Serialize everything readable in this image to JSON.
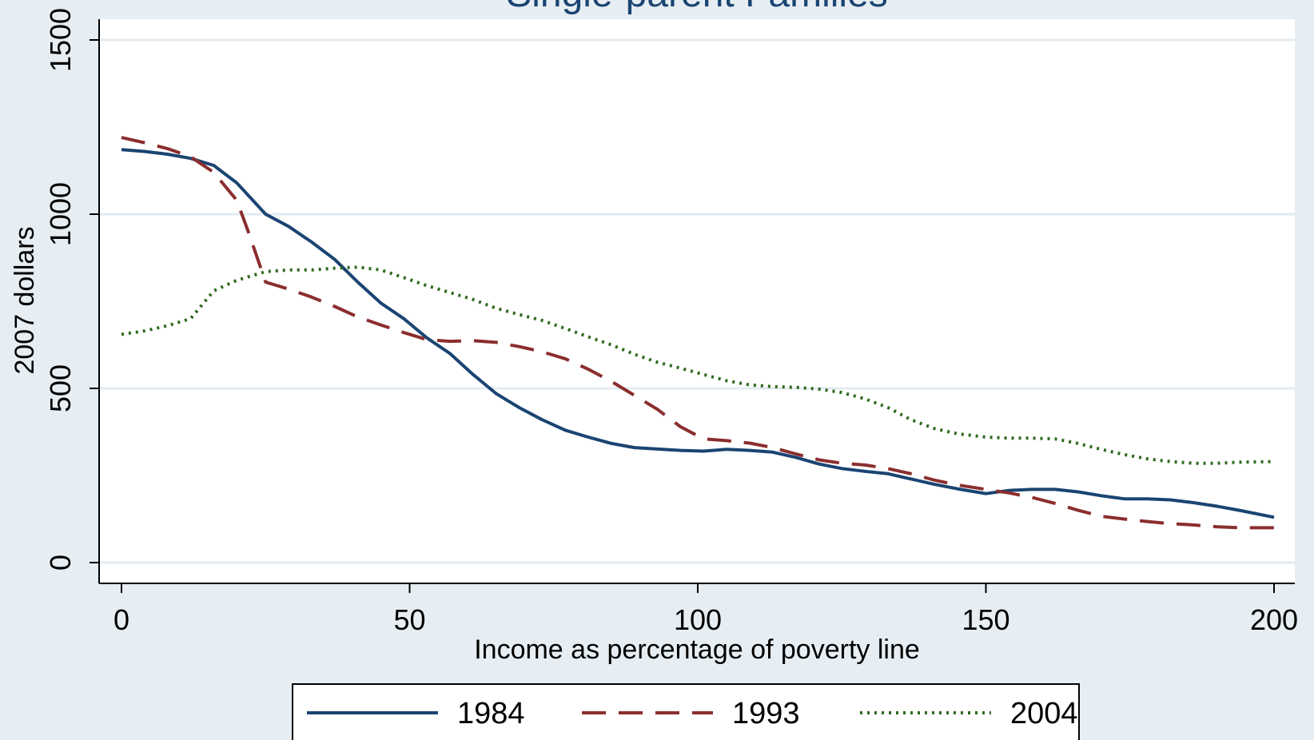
{
  "chart_data": {
    "type": "line",
    "title": "Single-parent Families",
    "xlabel": "Income as percentage of poverty line",
    "ylabel": "2007 dollars",
    "xlim": [
      0,
      200
    ],
    "ylim": [
      0,
      1500
    ],
    "xticks": [
      "0",
      "50",
      "100",
      "150",
      "200"
    ],
    "yticks": [
      "0",
      "500",
      "1000",
      "1500"
    ],
    "grid": true,
    "legend_position": "bottom",
    "series": [
      {
        "name": "1984",
        "color": "#1a4472",
        "style": "solid",
        "x": [
          0,
          4,
          8,
          12,
          16,
          20,
          25,
          29,
          33,
          37,
          41,
          45,
          49,
          53,
          57,
          61,
          65,
          69,
          73,
          77,
          81,
          85,
          89,
          93,
          97,
          101,
          105,
          109,
          113,
          117,
          121,
          125,
          129,
          133,
          137,
          141,
          145,
          150,
          154,
          158,
          162,
          166,
          170,
          174,
          178,
          182,
          186,
          190,
          194,
          200
        ],
        "y": [
          1185,
          1180,
          1172,
          1160,
          1140,
          1090,
          1000,
          965,
          920,
          870,
          805,
          745,
          700,
          645,
          600,
          540,
          485,
          445,
          410,
          380,
          360,
          342,
          330,
          326,
          322,
          320,
          325,
          322,
          317,
          302,
          283,
          270,
          262,
          255,
          240,
          225,
          212,
          198,
          207,
          210,
          210,
          203,
          192,
          183,
          183,
          180,
          172,
          162,
          150,
          130
        ]
      },
      {
        "name": "1993",
        "color": "#8b2e2e",
        "style": "dashed",
        "x": [
          0,
          4,
          8,
          12,
          16,
          20,
          22,
          25,
          29,
          33,
          37,
          41,
          45,
          49,
          53,
          57,
          61,
          65,
          69,
          73,
          77,
          81,
          85,
          89,
          93,
          97,
          101,
          105,
          109,
          113,
          117,
          121,
          125,
          129,
          133,
          137,
          141,
          145,
          150,
          154,
          158,
          162,
          166,
          170,
          174,
          178,
          182,
          186,
          190,
          194,
          200
        ],
        "y": [
          1220,
          1205,
          1188,
          1165,
          1120,
          1040,
          950,
          805,
          785,
          762,
          735,
          705,
          682,
          660,
          640,
          635,
          637,
          632,
          620,
          605,
          585,
          555,
          520,
          480,
          440,
          390,
          355,
          350,
          343,
          330,
          312,
          295,
          285,
          280,
          270,
          255,
          237,
          223,
          210,
          200,
          187,
          170,
          150,
          133,
          125,
          118,
          112,
          108,
          103,
          100,
          100
        ]
      },
      {
        "name": "2004",
        "color": "#2e6b1f",
        "style": "dotted",
        "x": [
          0,
          4,
          8,
          12,
          16,
          20,
          25,
          29,
          33,
          37,
          41,
          45,
          49,
          53,
          57,
          61,
          65,
          69,
          73,
          77,
          81,
          85,
          89,
          93,
          97,
          101,
          105,
          109,
          113,
          117,
          121,
          125,
          129,
          133,
          137,
          141,
          145,
          150,
          154,
          158,
          162,
          166,
          170,
          174,
          178,
          182,
          186,
          190,
          194,
          200
        ],
        "y": [
          655,
          665,
          680,
          700,
          780,
          810,
          835,
          840,
          840,
          845,
          848,
          840,
          818,
          795,
          775,
          755,
          730,
          712,
          695,
          672,
          648,
          625,
          598,
          575,
          558,
          540,
          522,
          510,
          505,
          503,
          498,
          488,
          470,
          445,
          410,
          385,
          370,
          360,
          357,
          357,
          355,
          342,
          325,
          310,
          298,
          290,
          285,
          285,
          288,
          290
        ]
      }
    ]
  }
}
